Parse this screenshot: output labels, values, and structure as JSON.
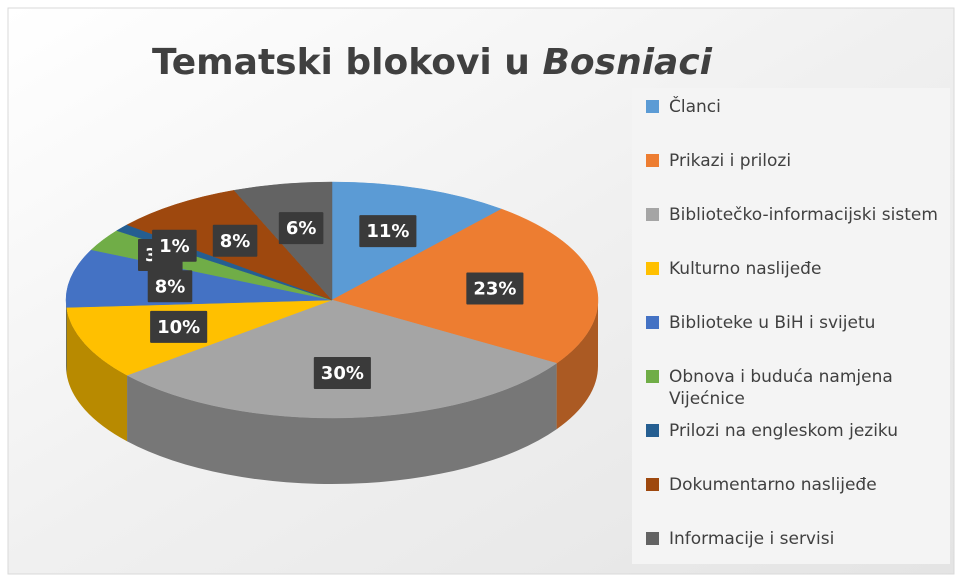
{
  "chart_data": {
    "type": "pie3d",
    "title": "Tematski blokovi u",
    "title_emphasis": "Bosniaci",
    "categories": [
      "Članci",
      "Prikazi i prilozi",
      "Bibliotečko-informacijski sistem",
      "Kulturno naslijeđe",
      "Biblioteke u BiH i svijetu",
      "Obnova i buduća namjena Vijećnice",
      "Prilozi na engleskom jeziku",
      "Dokumentarno naslijeđe",
      "Informacije i servisi"
    ],
    "values": [
      11,
      23,
      30,
      10,
      8,
      3,
      1,
      8,
      6
    ],
    "value_labels": [
      "11%",
      "23%",
      "30%",
      "10%",
      "8%",
      "3%",
      "1%",
      "8%",
      "6%"
    ],
    "colors": [
      "#5b9bd5",
      "#ed7d31",
      "#a5a5a5",
      "#ffc000",
      "#4472c4",
      "#70ad47",
      "#255e91",
      "#9e480e",
      "#636363"
    ],
    "legend": "right"
  }
}
